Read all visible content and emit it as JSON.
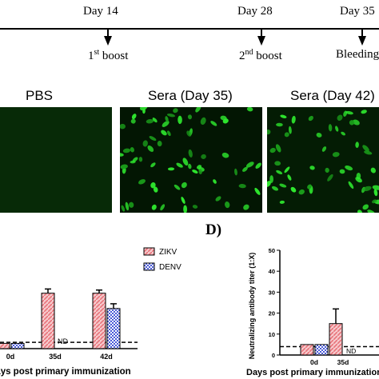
{
  "timeline": {
    "days": [
      "Day 14",
      "Day 28",
      "Day 35"
    ],
    "events": [
      {
        "prefix": "1",
        "sup": "st",
        "suffix": " boost"
      },
      {
        "prefix": "2",
        "sup": "nd",
        "suffix": " boost"
      },
      {
        "prefix": "Bleeding",
        "sup": "",
        "suffix": ""
      }
    ]
  },
  "micrographs": {
    "titles": [
      "PBS",
      "Sera (Day 35)",
      "Sera (Day 42)"
    ]
  },
  "panel_d_label": "D)",
  "chart_data": [
    {
      "type": "bar",
      "categories": [
        "0d",
        "35d",
        "42d"
      ],
      "series": [
        {
          "name": "ZIKV",
          "values": [
            1,
            10.5,
            10.5
          ],
          "errors": [
            0,
            0.8,
            0.6
          ]
        },
        {
          "name": "DENV",
          "values": [
            1,
            null,
            7.6
          ],
          "errors": [
            0,
            0,
            0.9
          ]
        }
      ],
      "na_label": "ND",
      "xlabel": "Days post primary immunization",
      "ylabel": "",
      "ylim": [
        0,
        13
      ],
      "dashed_reference_y": 1.2,
      "legend": "top-right",
      "colors": {
        "ZIKV": "#e8737a",
        "DENV": "#4a5bd8"
      }
    },
    {
      "type": "bar",
      "categories": [
        "0d",
        "35d"
      ],
      "series": [
        {
          "name": "ZIKV",
          "values": [
            5,
            15
          ],
          "errors": [
            0,
            7
          ]
        },
        {
          "name": "DENV",
          "values": [
            5,
            null
          ],
          "errors": [
            0,
            0
          ]
        }
      ],
      "na_label": "ND",
      "xlabel": "Days post primary immunization",
      "ylabel": "Neutralizing antibody titer (1:X)",
      "yticks": [
        0,
        10,
        20,
        30,
        40,
        50
      ],
      "ylim": [
        0,
        50
      ],
      "dashed_reference_y": 4,
      "colors": {
        "ZIKV": "#e8737a",
        "DENV": "#4a5bd8"
      }
    }
  ]
}
